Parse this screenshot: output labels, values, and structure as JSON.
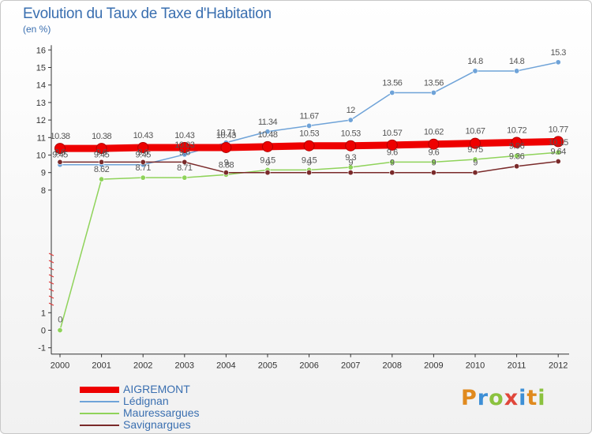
{
  "header": {
    "title": "Evolution du Taux de Taxe d'Habitation",
    "subtitle": "(en %)"
  },
  "brand": {
    "name": "Proxiti",
    "letter_colors": [
      "#e08a1e",
      "#3d8fd6",
      "#8bc23f",
      "#e0463a",
      "#3d8fd6",
      "#e08a1e",
      "#8bc23f"
    ]
  },
  "chart_data": {
    "type": "line",
    "title": "Evolution du Taux de Taxe d'Habitation",
    "ylabel": "(en %)",
    "categories": [
      "2000",
      "2001",
      "2002",
      "2003",
      "2004",
      "2005",
      "2006",
      "2007",
      "2008",
      "2009",
      "2010",
      "2011",
      "2012"
    ],
    "ylim": [
      -1,
      16
    ],
    "yticks": [
      -1,
      0,
      1,
      8,
      9,
      10,
      11,
      12,
      13,
      14,
      15,
      16
    ],
    "grid": false,
    "legend_position": "bottom-left",
    "series": [
      {
        "name": "AIGREMONT",
        "color": "#ee0000",
        "width": 9,
        "values": [
          10.38,
          10.38,
          10.43,
          10.43,
          10.43,
          10.48,
          10.53,
          10.53,
          10.57,
          10.62,
          10.67,
          10.72,
          10.77
        ],
        "labels": [
          "10.38",
          "10.38",
          "10.43",
          "10.43",
          "10.43",
          "10.48",
          "10.53",
          "10.53",
          "10.57",
          "10.62",
          "10.67",
          "10.72",
          "10.77"
        ]
      },
      {
        "name": "Lédignan",
        "color": "#6fa3d8",
        "width": 1.5,
        "values": [
          9.45,
          9.45,
          9.45,
          10.03,
          10.71,
          11.34,
          11.67,
          12,
          13.56,
          13.56,
          14.8,
          14.8,
          15.3
        ],
        "labels": [
          "9.45",
          "9.45",
          "9.45",
          "10.03",
          "10.71",
          "11.34",
          "11.67",
          "12",
          "13.56",
          "13.56",
          "14.8",
          "14.8",
          "15.3"
        ]
      },
      {
        "name": "Mauressargues",
        "color": "#8fd35a",
        "width": 1.5,
        "values": [
          0,
          8.62,
          8.71,
          8.71,
          8.88,
          9.15,
          9.15,
          9.3,
          9.6,
          9.6,
          9.75,
          9.96,
          10.15
        ],
        "labels": [
          "0",
          "8.62",
          "8.71",
          "8.71",
          "8.88",
          "9.15",
          "9.15",
          "9.3",
          "9.6",
          "9.6",
          "9.75",
          "9.96",
          "10.15"
        ]
      },
      {
        "name": "Savignargues",
        "color": "#7a2a2a",
        "width": 1.5,
        "values": [
          9.6,
          9.6,
          9.6,
          9.6,
          9,
          9,
          9,
          9,
          9,
          9,
          9,
          9.36,
          9.64
        ],
        "labels": [
          "9.6",
          "9.6",
          "9.6",
          "9.6",
          "9",
          "9",
          "9",
          "9",
          "9",
          "9",
          "9",
          "9.36",
          "9.64"
        ]
      }
    ]
  }
}
